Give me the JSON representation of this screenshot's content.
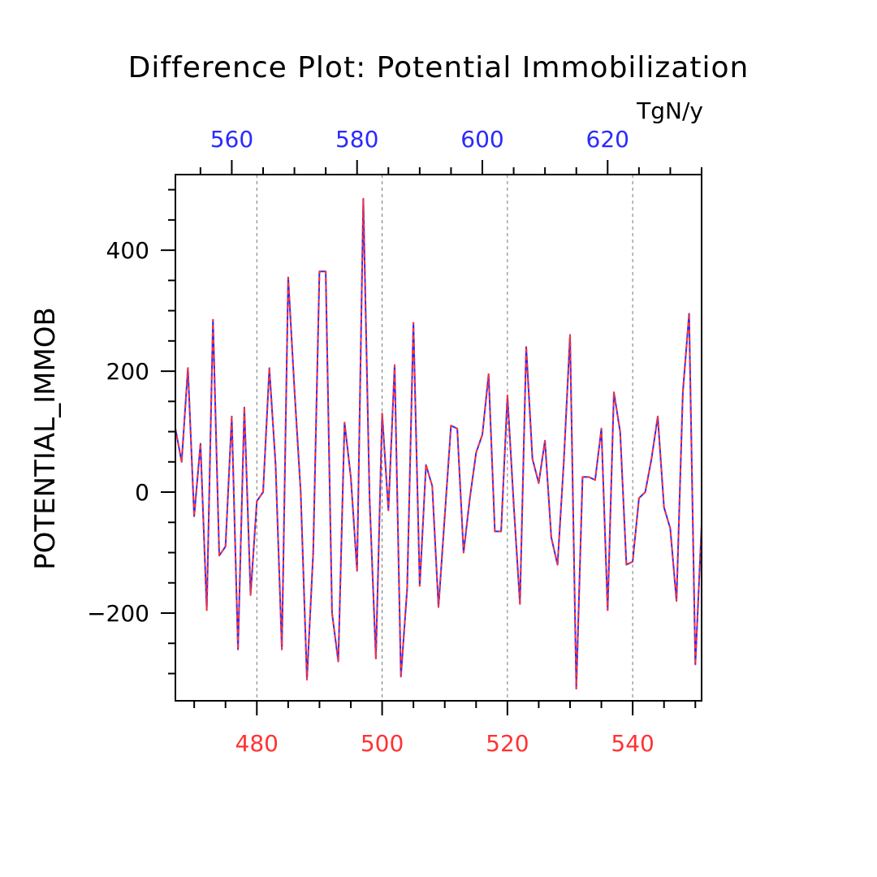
{
  "chart_data": {
    "type": "line",
    "title": "Difference Plot: Potential Immobilization",
    "units": "TgN/y",
    "ylabel": "POTENTIAL_IMMOB",
    "xlabel": "",
    "ylim": [
      -345,
      525
    ],
    "yticks": [
      -200,
      0,
      200,
      400
    ],
    "ytick_labels": [
      "−200",
      "0",
      "200",
      "400"
    ],
    "x_bottom": {
      "range": [
        467,
        551
      ],
      "ticks": [
        480,
        500,
        520,
        540
      ],
      "color": "#ff3333"
    },
    "x_top": {
      "range": [
        551,
        635
      ],
      "ticks": [
        560,
        580,
        600,
        620
      ],
      "color": "#2a2aff"
    },
    "grid": "vertical-dashed",
    "series": [
      {
        "color": "#2a2aff",
        "dash": "solid",
        "x": [
          467,
          468,
          469,
          470,
          471,
          472,
          473,
          474,
          475,
          476,
          477,
          478,
          479,
          480,
          481,
          482,
          483,
          484,
          485,
          486,
          487,
          488,
          489,
          490,
          491,
          492,
          493,
          494,
          495,
          496,
          497,
          498,
          499,
          500,
          501,
          502,
          503,
          504,
          505,
          506,
          507,
          508,
          509,
          510,
          511,
          512,
          513,
          514,
          515,
          516,
          517,
          518,
          519,
          520,
          521,
          522,
          523,
          524,
          525,
          526,
          527,
          528,
          529,
          530,
          531,
          532,
          533,
          534,
          535,
          536,
          537,
          538,
          539,
          540,
          541,
          542,
          543,
          544,
          545,
          546,
          547,
          548,
          549,
          550,
          551
        ],
        "values": [
          105,
          50,
          205,
          -40,
          80,
          -195,
          285,
          -105,
          -90,
          125,
          -260,
          140,
          -170,
          -15,
          0,
          205,
          45,
          -260,
          355,
          170,
          0,
          -310,
          -100,
          365,
          365,
          -200,
          -280,
          115,
          25,
          -130,
          485,
          -10,
          -275,
          130,
          -30,
          210,
          -305,
          -160,
          280,
          -155,
          45,
          10,
          -190,
          -40,
          110,
          105,
          -100,
          -10,
          65,
          95,
          195,
          -65,
          -65,
          160,
          -20,
          -185,
          240,
          55,
          15,
          85,
          -75,
          -120,
          50,
          260,
          -325,
          25,
          25,
          20,
          105,
          -195,
          165,
          100,
          -120,
          -115,
          -10,
          0,
          55,
          125,
          -25,
          -60,
          -180,
          165,
          295,
          -285,
          -55
        ]
      },
      {
        "color": "#ff3333",
        "dash": "dashed",
        "x": [
          467,
          468,
          469,
          470,
          471,
          472,
          473,
          474,
          475,
          476,
          477,
          478,
          479,
          480,
          481,
          482,
          483,
          484,
          485,
          486,
          487,
          488,
          489,
          490,
          491,
          492,
          493,
          494,
          495,
          496,
          497,
          498,
          499,
          500,
          501,
          502,
          503,
          504,
          505,
          506,
          507,
          508,
          509,
          510,
          511,
          512,
          513,
          514,
          515,
          516,
          517,
          518,
          519,
          520,
          521,
          522,
          523,
          524,
          525,
          526,
          527,
          528,
          529,
          530,
          531,
          532,
          533,
          534,
          535,
          536,
          537,
          538,
          539,
          540,
          541,
          542,
          543,
          544,
          545,
          546,
          547,
          548,
          549,
          550,
          551
        ],
        "values": [
          105,
          50,
          205,
          -40,
          80,
          -195,
          285,
          -105,
          -90,
          125,
          -260,
          140,
          -170,
          -15,
          0,
          205,
          45,
          -260,
          355,
          170,
          0,
          -310,
          -100,
          365,
          365,
          -200,
          -280,
          115,
          25,
          -130,
          485,
          -10,
          -275,
          130,
          -30,
          210,
          -305,
          -160,
          280,
          -155,
          45,
          10,
          -190,
          -40,
          110,
          105,
          -100,
          -10,
          65,
          95,
          195,
          -65,
          -65,
          160,
          -20,
          -185,
          240,
          55,
          15,
          85,
          -75,
          -120,
          50,
          260,
          -325,
          25,
          25,
          20,
          105,
          -195,
          165,
          100,
          -120,
          -115,
          -10,
          0,
          55,
          125,
          -25,
          -60,
          -180,
          165,
          295,
          -285,
          -55
        ]
      }
    ]
  }
}
